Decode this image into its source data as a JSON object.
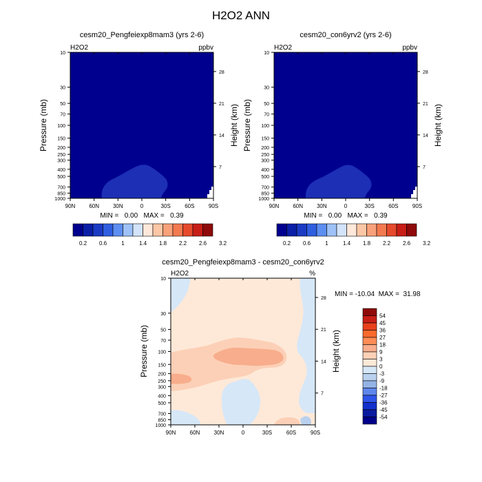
{
  "main_title": "H2O2 ANN",
  "colors": {
    "deep_navy": "#00008e",
    "blue_region": "#1c2fb5",
    "seq_scale": [
      "#00008e",
      "#0a1fa6",
      "#1b3bc4",
      "#2f5fe0",
      "#5d8ff2",
      "#9ec1f7",
      "#d3e3fa",
      "#ffe8da",
      "#fcc7a6",
      "#f8a17a",
      "#f37a50",
      "#e64a2c",
      "#c71e16",
      "#8f0a0a"
    ],
    "diff_scale": [
      "#8f0a0a",
      "#c71e16",
      "#e8421d",
      "#fa6a2c",
      "#ff8c55",
      "#f8ad8c",
      "#fcd0b7",
      "#fee9d8",
      "#d6e7f8",
      "#b9d1ee",
      "#93b3e6",
      "#5f86eb",
      "#2f54e8",
      "#1231cc",
      "#0a1aa0",
      "#00008a"
    ]
  },
  "chart_data": [
    {
      "type": "heatmap",
      "title": "cesm20_Pengfeiexp8mam3 (yrs 2-6)",
      "variable_label": "H2O2",
      "units": "ppbv",
      "ylabel": "Pressure (mb)",
      "ylabel_right": "Height (km)",
      "x_ticks": [
        "90N",
        "60N",
        "30N",
        "0",
        "30S",
        "60S",
        "90S"
      ],
      "y_ticks": [
        10,
        30,
        50,
        70,
        100,
        150,
        200,
        250,
        300,
        400,
        500,
        700,
        850,
        1000
      ],
      "right_ticks": [
        28,
        21,
        14,
        7
      ],
      "min_max_text": "MIN =   0.00   MAX =   0.39",
      "colorbar_labels": [
        "0.2",
        "0.6",
        "1",
        "1.4",
        "1.8",
        "2.2",
        "2.6",
        "3.2"
      ],
      "regions": [
        {
          "range": "0 - 0.2 ppbv",
          "extent": "most of the domain"
        },
        {
          "range": "0.2 - 0.4 ppbv",
          "extent": "lower troposphere, about 40N to 30S, below about 350 mb"
        }
      ]
    },
    {
      "type": "heatmap",
      "title": "cesm20_con6yrv2 (yrs 2-6)",
      "variable_label": "H2O2",
      "units": "ppbv",
      "ylabel": "Pressure (mb)",
      "ylabel_right": "Height (km)",
      "x_ticks": [
        "90N",
        "60N",
        "30N",
        "0",
        "30S",
        "60S",
        "90S"
      ],
      "y_ticks": [
        10,
        30,
        50,
        70,
        100,
        150,
        200,
        250,
        300,
        400,
        500,
        700,
        850,
        1000
      ],
      "right_ticks": [
        28,
        21,
        14,
        7
      ],
      "min_max_text": "MIN =   0.00   MAX =   0.39",
      "colorbar_labels": [
        "0.2",
        "0.6",
        "1",
        "1.4",
        "1.8",
        "2.2",
        "2.6",
        "3.2"
      ],
      "regions": [
        {
          "range": "0 - 0.2 ppbv",
          "extent": "most of the domain"
        },
        {
          "range": "0.2 - 0.4 ppbv",
          "extent": "lower troposphere, about 40N to 30S, below about 350 mb"
        }
      ]
    },
    {
      "type": "heatmap",
      "title": "cesm20_Pengfeiexp8mam3 - cesm20_con6yrv2",
      "variable_label": "H2O2",
      "units": "%",
      "ylabel": "Pressure (mb)",
      "ylabel_right": "Height (km)",
      "x_ticks": [
        "90N",
        "60N",
        "30N",
        "0",
        "30S",
        "60S",
        "90S"
      ],
      "y_ticks": [
        10,
        30,
        50,
        70,
        100,
        150,
        200,
        250,
        300,
        400,
        500,
        700,
        850,
        1000
      ],
      "right_ticks": [
        28,
        21,
        14,
        7
      ],
      "min_max_text": "MIN = -10.04  MAX =  31.98",
      "colorbar_labels": [
        "54",
        "45",
        "36",
        "27",
        "18",
        "9",
        "3",
        "0",
        "-3",
        "-9",
        "-18",
        "-27",
        "-36",
        "-45",
        "-54"
      ],
      "regions": [
        {
          "range": "0 to 3 %",
          "extent": "background over most of the domain"
        },
        {
          "range": "3 to 9 %",
          "extent": "band near 100-300 mb across the tropics and northern midlatitudes"
        },
        {
          "range": "9 to 18 %",
          "extent": "core near 100 mb, about 20N to 10S"
        },
        {
          "range": "-3 to 0 %",
          "extent": "patches near the poles and in the southern lower troposphere"
        }
      ]
    }
  ]
}
